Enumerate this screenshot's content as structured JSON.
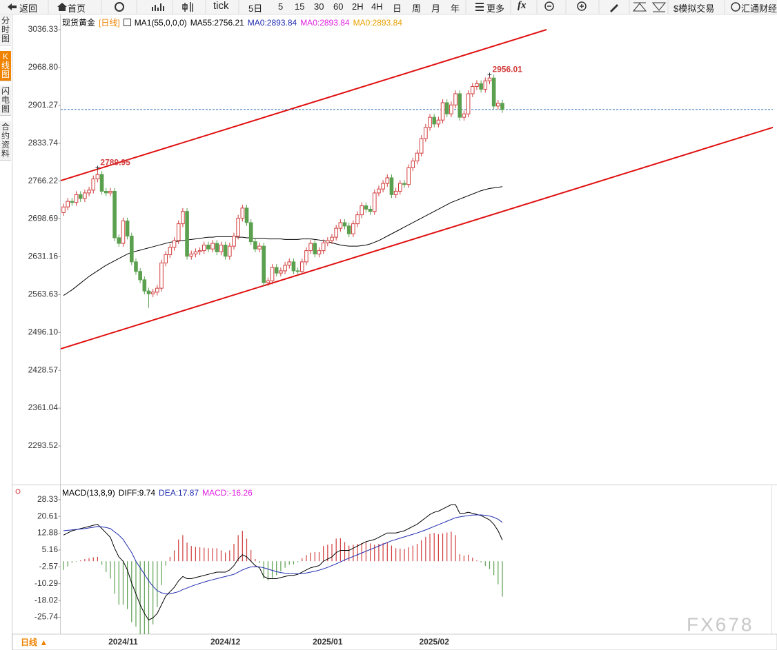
{
  "toolbar": [
    "返回",
    "首页",
    "tick",
    "5日",
    "5",
    "15",
    "30",
    "60",
    "2H",
    "4H",
    "日",
    "周",
    "月",
    "年",
    "更多",
    "fx",
    "$模拟交易",
    "汇通财经"
  ],
  "side_tabs": [
    "分时图",
    "K线图",
    "闪电图",
    "合约资料"
  ],
  "bottom_period": "日线 ▲",
  "watermark": "FX678",
  "chart_data": [
    {
      "type": "candlestick",
      "title": "现货黄金",
      "period": "[日线]",
      "indicator": "MA1(55,0,0,0)",
      "categories": [
        null,
        null,
        null,
        null,
        null,
        null,
        null,
        null,
        null,
        null,
        null,
        null,
        null,
        null,
        "2024/11",
        null,
        null,
        null,
        null,
        null,
        null,
        null,
        null,
        null,
        null,
        null,
        null,
        null,
        null,
        null,
        null,
        null,
        null,
        null,
        null,
        null,
        null,
        null,
        "2024/12",
        null,
        null,
        null,
        null,
        null,
        null,
        null,
        null,
        null,
        null,
        null,
        null,
        null,
        null,
        null,
        null,
        null,
        null,
        null,
        null,
        null,
        null,
        null,
        "2025/01",
        null,
        null,
        null,
        null,
        null,
        null,
        null,
        null,
        null,
        null,
        null,
        null,
        null,
        null,
        null,
        null,
        null,
        null,
        null,
        null,
        null,
        null,
        null,
        null,
        "2025/02",
        null,
        null,
        null,
        null,
        null,
        null,
        null,
        null,
        null,
        null,
        null,
        null,
        null,
        null,
        null,
        null
      ],
      "open": [
        2710,
        2720,
        2730,
        2728,
        2742,
        2735,
        2745,
        2750,
        2770,
        2778,
        2748,
        2745,
        2748,
        2665,
        2655,
        2695,
        2668,
        2622,
        2605,
        2590,
        2570,
        2565,
        2568,
        2575,
        2620,
        2635,
        2648,
        2660,
        2690,
        2712,
        2632,
        2636,
        2640,
        2642,
        2652,
        2645,
        2655,
        2640,
        2652,
        2632,
        2650,
        2668,
        2700,
        2718,
        2692,
        2658,
        2645,
        2650,
        2585,
        2588,
        2612,
        2602,
        2606,
        2616,
        2622,
        2606,
        2605,
        2622,
        2642,
        2655,
        2636,
        2642,
        2656,
        2660,
        2666,
        2682,
        2692,
        2686,
        2672,
        2690,
        2706,
        2722,
        2716,
        2712,
        2745,
        2752,
        2762,
        2772,
        2742,
        2748,
        2762,
        2760,
        2790,
        2802,
        2816,
        2842,
        2862,
        2880,
        2868,
        2875,
        2906,
        2886,
        2902,
        2922,
        2880,
        2886,
        2922,
        2935,
        2940,
        2930,
        2945,
        2950,
        2900,
        2905
      ],
      "high": [
        2726,
        2736,
        2736,
        2748,
        2748,
        2751,
        2756,
        2776,
        2789.95,
        2784,
        2754,
        2754,
        2754,
        2671,
        2701,
        2701,
        2674,
        2628,
        2611,
        2596,
        2576,
        2574,
        2581,
        2626,
        2641,
        2654,
        2666,
        2696,
        2718,
        2718,
        2642,
        2646,
        2648,
        2658,
        2658,
        2661,
        2661,
        2658,
        2658,
        2656,
        2674,
        2706,
        2724,
        2724,
        2698,
        2664,
        2656,
        2656,
        2594,
        2618,
        2618,
        2612,
        2622,
        2628,
        2628,
        2612,
        2628,
        2648,
        2661,
        2661,
        2648,
        2662,
        2666,
        2672,
        2688,
        2698,
        2698,
        2692,
        2696,
        2712,
        2728,
        2728,
        2722,
        2751,
        2758,
        2768,
        2778,
        2778,
        2754,
        2768,
        2768,
        2796,
        2808,
        2822,
        2848,
        2868,
        2886,
        2886,
        2881,
        2912,
        2912,
        2908,
        2928,
        2928,
        2892,
        2928,
        2941,
        2946,
        2946,
        2951,
        2956.01,
        2956,
        2911,
        2911
      ],
      "low": [
        2704,
        2714,
        2722,
        2722,
        2729,
        2729,
        2739,
        2744,
        2764,
        2742,
        2739,
        2739,
        2659,
        2649,
        2649,
        2662,
        2616,
        2599,
        2584,
        2564,
        2540,
        2559,
        2562,
        2569,
        2614,
        2629,
        2642,
        2654,
        2684,
        2626,
        2626,
        2630,
        2634,
        2636,
        2639,
        2639,
        2634,
        2634,
        2626,
        2626,
        2644,
        2662,
        2694,
        2686,
        2652,
        2639,
        2639,
        2579,
        2579,
        2582,
        2596,
        2596,
        2600,
        2610,
        2600,
        2599,
        2599,
        2616,
        2636,
        2630,
        2630,
        2636,
        2650,
        2654,
        2660,
        2676,
        2680,
        2666,
        2666,
        2684,
        2700,
        2710,
        2706,
        2706,
        2739,
        2746,
        2756,
        2736,
        2736,
        2742,
        2754,
        2754,
        2784,
        2796,
        2810,
        2836,
        2856,
        2862,
        2862,
        2869,
        2880,
        2880,
        2896,
        2874,
        2874,
        2880,
        2916,
        2929,
        2924,
        2924,
        2939,
        2894,
        2894,
        2888
      ],
      "close": [
        2720,
        2730,
        2728,
        2742,
        2735,
        2745,
        2750,
        2770,
        2778,
        2748,
        2745,
        2748,
        2665,
        2655,
        2695,
        2668,
        2622,
        2605,
        2590,
        2570,
        2565,
        2568,
        2575,
        2620,
        2635,
        2648,
        2660,
        2690,
        2712,
        2632,
        2636,
        2640,
        2642,
        2652,
        2645,
        2655,
        2640,
        2652,
        2632,
        2650,
        2668,
        2700,
        2718,
        2692,
        2658,
        2645,
        2650,
        2585,
        2588,
        2612,
        2602,
        2606,
        2616,
        2622,
        2606,
        2605,
        2622,
        2642,
        2655,
        2636,
        2642,
        2656,
        2660,
        2666,
        2682,
        2692,
        2686,
        2672,
        2690,
        2706,
        2722,
        2716,
        2712,
        2745,
        2752,
        2762,
        2772,
        2742,
        2748,
        2762,
        2760,
        2790,
        2802,
        2816,
        2842,
        2862,
        2880,
        2868,
        2875,
        2906,
        2886,
        2902,
        2922,
        2880,
        2886,
        2922,
        2935,
        2940,
        2930,
        2945,
        2950,
        2900,
        2905,
        2893.84
      ],
      "up_color": "#d23c3c",
      "down_color": "#5aa04f",
      "last_line_color": "#2a6fb8",
      "series": [
        {
          "name": "MA55",
          "color": "#000000",
          "values": [
            2562,
            2567,
            2572,
            2578,
            2584,
            2590,
            2596,
            2601,
            2606,
            2611,
            2616,
            2620,
            2624,
            2628,
            2632,
            2636,
            2639,
            2641,
            2643,
            2645,
            2647,
            2649,
            2651,
            2653,
            2655,
            2657,
            2658,
            2659,
            2660,
            2661,
            2662,
            2663,
            2664,
            2665,
            2666,
            2666,
            2667,
            2667,
            2667,
            2667,
            2667,
            2666,
            2666,
            2665,
            2665,
            2664,
            2664,
            2664,
            2663,
            2663,
            2663,
            2663,
            2662,
            2662,
            2662,
            2662,
            2663,
            2663,
            2663,
            2662,
            2661,
            2660,
            2658,
            2656,
            2654,
            2652,
            2651,
            2650,
            2650,
            2650,
            2651,
            2652,
            2654,
            2657,
            2660,
            2664,
            2668,
            2672,
            2676,
            2680,
            2684,
            2688,
            2692,
            2696,
            2700,
            2704,
            2708,
            2712,
            2716,
            2720,
            2724,
            2728,
            2731,
            2734,
            2737,
            2740,
            2743,
            2746,
            2749,
            2751,
            2753,
            2754,
            2755,
            2756.21
          ]
        }
      ],
      "legend": [
        {
          "label": "MA55:2756.21",
          "color": "#000000"
        },
        {
          "label": "MA0:2893.84",
          "color": "#1f2bb0"
        },
        {
          "label": "MA0:2893.84",
          "color": "#e020e0"
        },
        {
          "label": "MA0:2893.84",
          "color": "#e8a000"
        }
      ],
      "annotations": [
        {
          "text": "2789.95",
          "value": 2789.95,
          "color": "#d23c3c"
        },
        {
          "text": "2956.01",
          "value": 2956.01,
          "color": "#d23c3c"
        }
      ],
      "ylim": [
        2228.3,
        3062.2
      ],
      "yticks": [
        3036.33,
        {
          "value": 2968.8,
          "label": "2968.80"
        },
        2901.27,
        2833.74,
        2766.22,
        2698.69,
        2631.16,
        2563.63,
        {
          "value": 2496.1,
          "label": "2496.10"
        },
        2428.57,
        2361.04,
        2293.52
      ]
    },
    {
      "type": "macd",
      "title": "MACD(13,8,9)",
      "series": [
        {
          "name": "DIFF",
          "color": "#000000",
          "values": [
            12,
            13,
            14,
            14.5,
            15,
            15.5,
            16,
            16.5,
            17,
            15,
            13,
            11,
            6,
            2,
            0,
            -4,
            -10,
            -15,
            -20,
            -24,
            -27,
            -26,
            -24,
            -20,
            -16,
            -14,
            -12,
            -9,
            -7,
            -8,
            -8,
            -7.5,
            -7,
            -6.5,
            -6,
            -5.5,
            -5,
            -5,
            -5,
            -4,
            -2,
            1,
            3,
            2,
            0,
            -2,
            -3,
            -7,
            -8,
            -8,
            -8,
            -7.5,
            -7,
            -6.5,
            -6.5,
            -6,
            -5,
            -4,
            -3,
            -2.5,
            -2,
            0,
            1,
            2,
            4,
            5,
            5,
            5,
            6,
            7,
            8,
            9,
            9.5,
            10,
            11,
            12,
            13,
            13,
            13,
            13.5,
            14,
            15,
            16,
            17,
            18.5,
            20,
            21.5,
            22.5,
            23,
            24,
            25,
            26,
            26,
            22,
            22,
            22.5,
            22,
            21.5,
            21,
            20,
            19,
            17,
            14,
            9.74
          ]
        },
        {
          "name": "DEA",
          "color": "#1f2bb0",
          "values": [
            14,
            14.2,
            14.4,
            14.6,
            14.8,
            15,
            15.3,
            15.6,
            16,
            15.8,
            15.5,
            15,
            13.5,
            12,
            10,
            7,
            4,
            0,
            -3,
            -6,
            -9,
            -11.5,
            -13.5,
            -14.5,
            -15,
            -15,
            -14.5,
            -14,
            -13,
            -12.3,
            -11.5,
            -10.8,
            -10.2,
            -9.6,
            -9,
            -8.5,
            -8,
            -7.5,
            -7,
            -6.5,
            -6,
            -5,
            -4,
            -3.2,
            -2.6,
            -2.5,
            -2.6,
            -3,
            -3.6,
            -4.2,
            -4.8,
            -5.2,
            -5.5,
            -5.7,
            -5.8,
            -5.8,
            -5.7,
            -5.4,
            -5,
            -4.6,
            -4.1,
            -3.5,
            -2.8,
            -2,
            -1.2,
            -0.3,
            0.6,
            1.4,
            2.2,
            3,
            3.8,
            4.6,
            5.4,
            6.2,
            7,
            7.8,
            8.6,
            9.4,
            10,
            10.6,
            11.2,
            11.8,
            12.4,
            13,
            13.7,
            14.4,
            15.2,
            16,
            16.8,
            17.6,
            18.4,
            19.2,
            20,
            20.4,
            20.7,
            21,
            21.2,
            21.3,
            21.3,
            21.1,
            20.8,
            20.2,
            19.3,
            17.87
          ]
        },
        {
          "name": "MACD",
          "color": "#d23c3c",
          "negative_color": "#5aa04f",
          "values": [
            -4,
            -2.4,
            -0.8,
            -0.2,
            0.4,
            1,
            1.4,
            1.8,
            2,
            -1.6,
            -5,
            -8,
            -15,
            -20,
            -20,
            -22,
            -28,
            -30,
            -34,
            -36,
            -36,
            -29,
            -21,
            -11,
            -2,
            2,
            5,
            10,
            12,
            8.6,
            7,
            6.6,
            6.4,
            6.2,
            6,
            6,
            6,
            5,
            4,
            5,
            8,
            12,
            14,
            10.4,
            5.2,
            1,
            -0.8,
            -8,
            -8.8,
            -7.6,
            -6.4,
            -4.6,
            -3,
            -1.6,
            -1.4,
            -0.4,
            1.4,
            2.8,
            4,
            4.2,
            4.2,
            7,
            7.6,
            8,
            10.4,
            10.6,
            8.8,
            7.2,
            7.6,
            8,
            8.4,
            8.8,
            8.2,
            7.6,
            8,
            8.4,
            8.8,
            7.2,
            6,
            5.8,
            5.6,
            6.4,
            7.2,
            8,
            9.6,
            11.2,
            12.6,
            13,
            12.4,
            12.8,
            13.2,
            13.6,
            12,
            3.2,
            2.6,
            3,
            1.6,
            0.4,
            -0.6,
            -2.2,
            -3.6,
            -6.4,
            -10.6,
            -16.26
          ]
        }
      ],
      "legend": [
        {
          "label": "DIFF:9.74",
          "color": "#000000"
        },
        {
          "label": "DEA:17.87",
          "color": "#1f2bb0"
        },
        {
          "label": "MACD:-16.26",
          "color": "#e020e0"
        }
      ],
      "ylim": [
        -33.5,
        34.6
      ],
      "yticks": [
        28.33,
        20.61,
        12.88,
        5.16,
        -2.57,
        -10.29,
        -18.02,
        -25.74
      ]
    }
  ]
}
